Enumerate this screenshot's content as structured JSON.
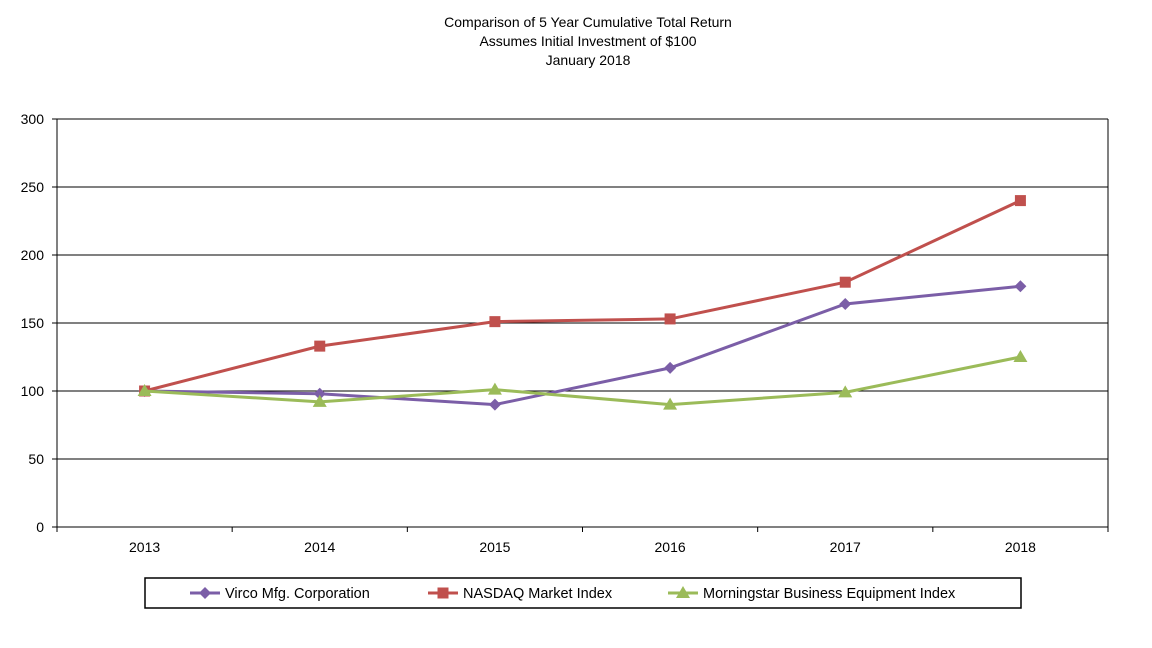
{
  "chart_data": {
    "type": "line",
    "title": [
      "Comparison of 5 Year Cumulative Total Return",
      "Assumes Initial Investment of $100",
      "January 2018"
    ],
    "xlabel": "",
    "ylabel": "",
    "categories": [
      "2013",
      "2014",
      "2015",
      "2016",
      "2017",
      "2018"
    ],
    "ylim": [
      0,
      300
    ],
    "yticks": [
      "0",
      "50",
      "100",
      "150",
      "200",
      "250",
      "300"
    ],
    "grid": true,
    "legend_position": "bottom",
    "series": [
      {
        "name": "Virco Mfg. Corporation",
        "color": "#7B5EA7",
        "marker": "diamond",
        "values": [
          100,
          98,
          90,
          117,
          164,
          177
        ]
      },
      {
        "name": "NASDAQ Market Index",
        "color": "#C0504D",
        "marker": "square",
        "values": [
          100,
          133,
          151,
          153,
          180,
          240
        ]
      },
      {
        "name": "Morningstar Business Equipment Index",
        "color": "#9BBB59",
        "marker": "triangle",
        "values": [
          100,
          92,
          101,
          90,
          99,
          125
        ]
      }
    ]
  }
}
